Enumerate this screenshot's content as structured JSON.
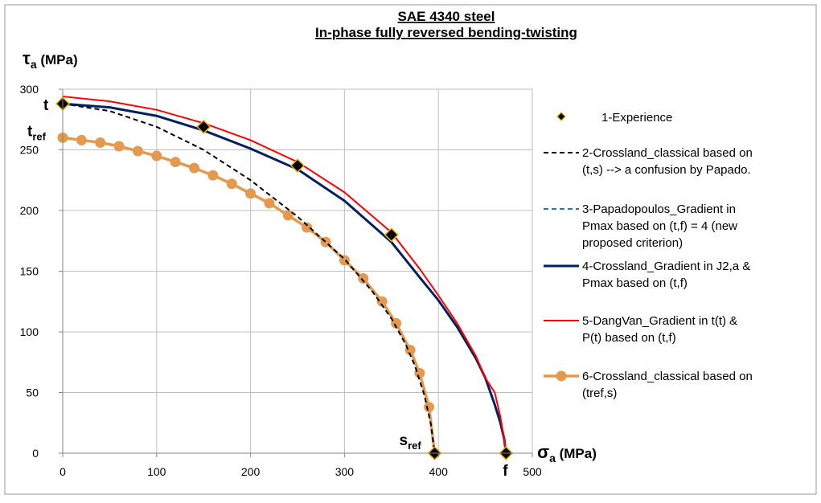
{
  "chart_data": {
    "type": "line",
    "title": [
      "SAE 4340 steel",
      "In-phase fully  reversed bending-twisting"
    ],
    "xlabel": "σa (MPa)",
    "ylabel": "τa (MPa)",
    "xlim": [
      0,
      500
    ],
    "ylim": [
      0,
      300
    ],
    "xticks": [
      0,
      100,
      200,
      300,
      400,
      500
    ],
    "yticks": [
      0,
      50,
      100,
      150,
      200,
      250,
      300
    ],
    "grid": true,
    "legend_position": "right",
    "annotations": [
      {
        "text": "t",
        "x": 0,
        "y": 288
      },
      {
        "text": "t",
        "sub": "ref",
        "x": 0,
        "y": 260
      },
      {
        "text": "s",
        "sub": "ref",
        "x": 396,
        "y": 0
      },
      {
        "text": "f",
        "x": 472,
        "y": 0
      }
    ],
    "series": [
      {
        "name": "1-Experience",
        "style": "markers",
        "color": "#000000",
        "edge_color": "#f0b400",
        "x": [
          0,
          150,
          250,
          350,
          396,
          472
        ],
        "y": [
          288,
          269,
          237,
          180,
          0,
          0
        ]
      },
      {
        "name": "2-Crossland_classical based on (t,s) --> a confusion by Papado.",
        "style": "dashed",
        "color": "#000000",
        "x": [
          0,
          50,
          100,
          150,
          200,
          250,
          300,
          330,
          350,
          365,
          375,
          385,
          392,
          396
        ],
        "y": [
          288,
          282,
          269,
          250,
          225,
          195,
          160,
          133,
          111,
          90,
          72,
          48,
          24,
          0
        ]
      },
      {
        "name": "3-Papadopoulos_Gradient in Pmax based on (t,f) = 4 (new proposed criterion)",
        "style": "dashed",
        "color": "#2e75b6",
        "x": [
          0,
          50,
          100,
          150,
          200,
          250,
          300,
          350,
          380,
          400,
          420,
          440,
          450,
          460,
          466,
          470,
          472
        ],
        "y": [
          288,
          285,
          278,
          266,
          251,
          234,
          208,
          174,
          145,
          126,
          104,
          78,
          62,
          40,
          25,
          12,
          0
        ]
      },
      {
        "name": "4-Crossland_Gradient in J2,a & Pmax based on (t,f)",
        "style": "solid",
        "color": "#002060",
        "x": [
          0,
          50,
          100,
          150,
          200,
          250,
          300,
          350,
          380,
          400,
          420,
          440,
          450,
          460,
          466,
          470,
          472
        ],
        "y": [
          288,
          285,
          278,
          266,
          251,
          234,
          208,
          174,
          145,
          126,
          104,
          78,
          62,
          40,
          25,
          12,
          0
        ]
      },
      {
        "name": "5-DangVan_Gradient in t(t) & P(t) based on (t,f)",
        "style": "solid",
        "color": "#ff0000",
        "x": [
          0,
          50,
          100,
          150,
          200,
          250,
          300,
          350,
          380,
          400,
          420,
          440,
          450,
          460,
          466,
          470,
          472
        ],
        "y": [
          294,
          290,
          283,
          272,
          258,
          240,
          215,
          182,
          152,
          130,
          107,
          80,
          62,
          50,
          30,
          12,
          0
        ]
      },
      {
        "name": "6-Crossland_classical based on (tref,s)",
        "style": "line-markers",
        "color": "#e39a4e",
        "x": [
          0,
          20,
          40,
          60,
          80,
          100,
          120,
          140,
          160,
          180,
          200,
          220,
          240,
          260,
          280,
          300,
          320,
          340,
          355,
          370,
          380,
          390,
          396
        ],
        "y": [
          260,
          258,
          256,
          253,
          249,
          245,
          240,
          235,
          229,
          222,
          214,
          206,
          196,
          186,
          174,
          159,
          144,
          125,
          107,
          85,
          66,
          38,
          0
        ]
      }
    ]
  }
}
